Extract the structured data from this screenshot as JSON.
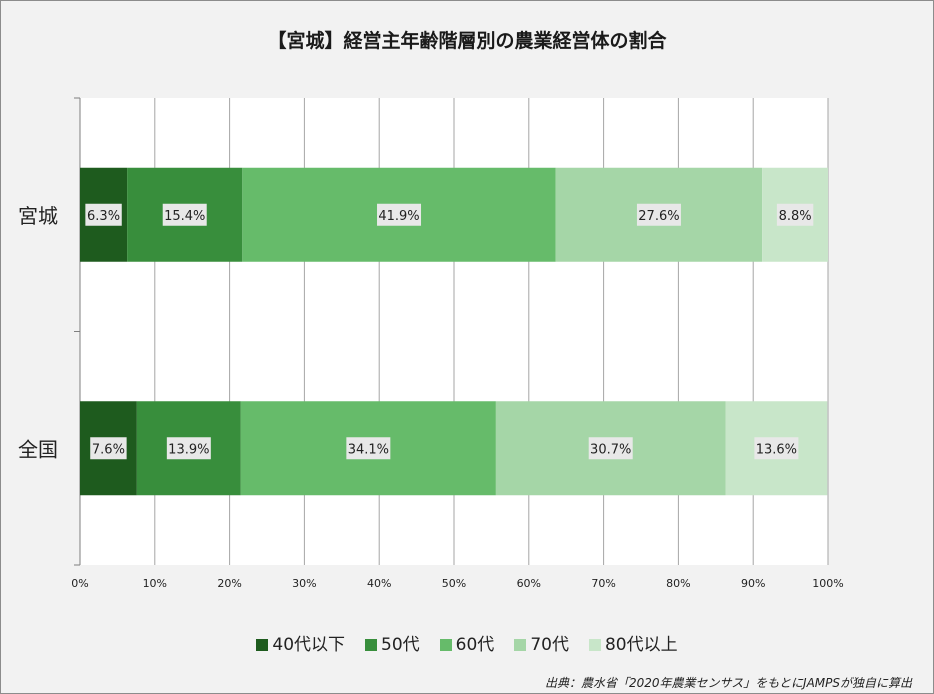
{
  "title": "【宮城】経営主年齢階層別の農業経営体の割合",
  "source": "出典：農水省「2020年農業センサス」をもとにJAMPSが独自に算出",
  "colors": [
    "#1e5b1e",
    "#388e3c",
    "#66bb6a",
    "#a5d6a7",
    "#c8e6c9"
  ],
  "chart_data": {
    "type": "bar",
    "stacked": true,
    "orientation": "horizontal",
    "categories": [
      "宮城",
      "全国"
    ],
    "series": [
      {
        "name": "40代以下",
        "values": [
          6.3,
          7.6
        ]
      },
      {
        "name": "50代",
        "values": [
          15.4,
          13.9
        ]
      },
      {
        "name": "60代",
        "values": [
          41.9,
          34.1
        ]
      },
      {
        "name": "70代",
        "values": [
          27.6,
          30.7
        ]
      },
      {
        "name": "80代以上",
        "values": [
          8.8,
          13.6
        ]
      }
    ],
    "data_labels": [
      [
        "6.3%",
        "15.4%",
        "41.9%",
        "27.6%",
        "8.8%"
      ],
      [
        "7.6%",
        "13.9%",
        "34.1%",
        "30.7%",
        "13.6%"
      ]
    ],
    "x_ticks": [
      "0%",
      "10%",
      "20%",
      "30%",
      "40%",
      "50%",
      "60%",
      "70%",
      "80%",
      "90%",
      "100%"
    ],
    "xlim": [
      0,
      100
    ],
    "grid": true,
    "legend_position": "bottom"
  }
}
